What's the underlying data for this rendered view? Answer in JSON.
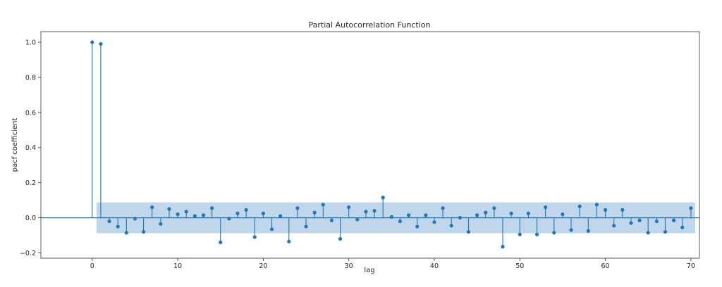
{
  "chart_data": {
    "type": "stem",
    "title": "Partial Autocorrelation Function",
    "xlabel": "lag",
    "ylabel": "pacf coefficient",
    "xlim": [
      -6,
      71
    ],
    "ylim": [
      -0.23,
      1.06
    ],
    "xticks": [
      0,
      10,
      20,
      30,
      40,
      50,
      60,
      70
    ],
    "yticks": [
      -0.2,
      0.0,
      0.2,
      0.4,
      0.6,
      0.8,
      1.0
    ],
    "ytick_labels": [
      "−0.2",
      "0.0",
      "0.2",
      "0.4",
      "0.6",
      "0.8",
      "1.0"
    ],
    "confidence_band": {
      "x_start": 0.5,
      "x_end": 70.5,
      "lower": -0.088,
      "upper": 0.088
    },
    "grid": false,
    "colors": {
      "marker": "#1f77b4",
      "band": "#b5cfe6",
      "zero_line": "#1f77b4"
    },
    "lags": [
      0,
      1,
      2,
      3,
      4,
      5,
      6,
      7,
      8,
      9,
      10,
      11,
      12,
      13,
      14,
      15,
      16,
      17,
      18,
      19,
      20,
      21,
      22,
      23,
      24,
      25,
      26,
      27,
      28,
      29,
      30,
      31,
      32,
      33,
      34,
      35,
      36,
      37,
      38,
      39,
      40,
      41,
      42,
      43,
      44,
      45,
      46,
      47,
      48,
      49,
      50,
      51,
      52,
      53,
      54,
      55,
      56,
      57,
      58,
      59,
      60,
      61,
      62,
      63,
      64,
      65,
      66,
      67,
      68,
      69,
      70
    ],
    "values": [
      1.0,
      0.99,
      -0.02,
      -0.05,
      -0.085,
      -0.005,
      -0.08,
      0.06,
      -0.035,
      0.05,
      0.02,
      0.035,
      0.01,
      0.015,
      0.055,
      -0.14,
      -0.005,
      0.025,
      0.045,
      -0.11,
      0.025,
      -0.065,
      0.01,
      -0.135,
      0.055,
      -0.05,
      0.03,
      0.075,
      -0.015,
      -0.12,
      0.06,
      -0.01,
      0.035,
      0.04,
      0.115,
      0.005,
      -0.02,
      0.015,
      -0.05,
      0.015,
      -0.025,
      0.055,
      -0.045,
      0.0,
      -0.08,
      0.015,
      0.03,
      0.055,
      -0.165,
      0.025,
      -0.095,
      0.025,
      -0.095,
      0.06,
      -0.085,
      0.02,
      -0.07,
      0.065,
      -0.075,
      0.075,
      0.045,
      -0.045,
      0.045,
      -0.03,
      -0.015,
      -0.085,
      -0.02,
      -0.08,
      -0.015,
      -0.055,
      0.055
    ]
  }
}
